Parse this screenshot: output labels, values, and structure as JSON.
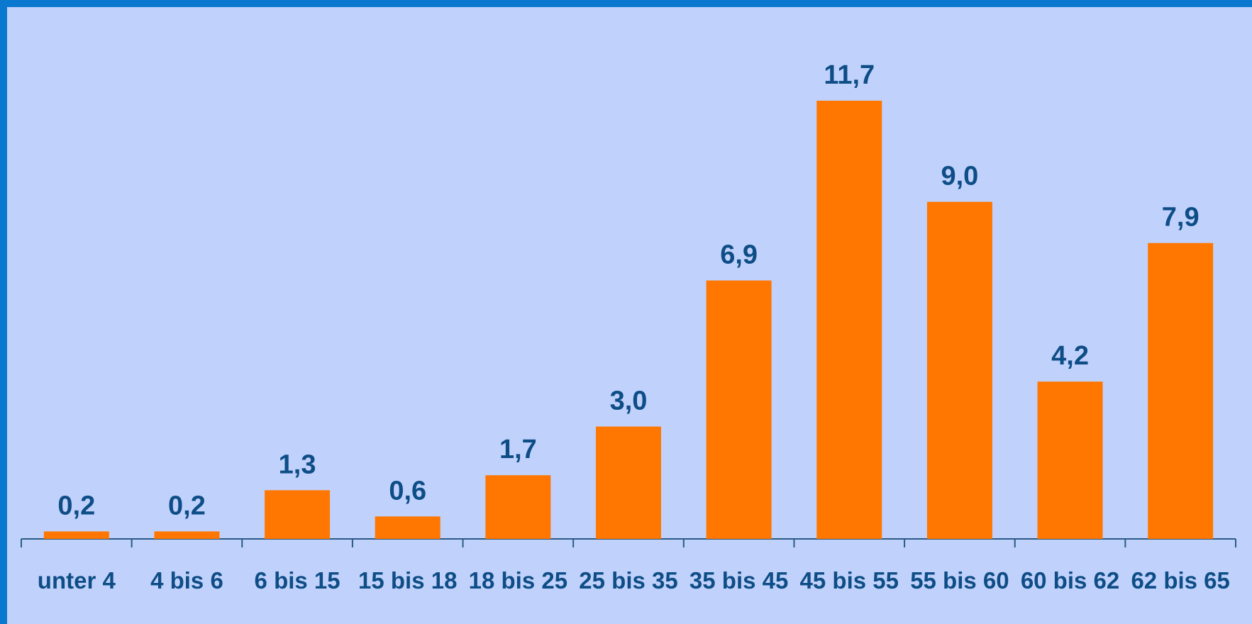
{
  "chart_data": {
    "type": "bar",
    "title": "",
    "xlabel": "",
    "ylabel": "",
    "categories": [
      "unter 4",
      "4 bis 6",
      "6 bis 15",
      "15 bis 18",
      "18 bis 25",
      "25 bis 35",
      "35 bis 45",
      "45 bis 55",
      "55 bis 60",
      "60 bis 62",
      "62 bis 65"
    ],
    "values": [
      0.2,
      0.2,
      1.3,
      0.6,
      1.7,
      3.0,
      6.9,
      11.7,
      9.0,
      4.2,
      7.9
    ],
    "value_labels": [
      "0,2",
      "0,2",
      "1,3",
      "0,6",
      "1,7",
      "3,0",
      "6,9",
      "11,7",
      "9,0",
      "4,2",
      "7,9"
    ],
    "ylim": [
      0,
      11.7
    ],
    "grid": false,
    "legend": "none",
    "colors": {
      "bar": "#ff7700",
      "background": "#c0d2fc",
      "border": "#0b78d0",
      "text": "#0e4d86"
    }
  }
}
